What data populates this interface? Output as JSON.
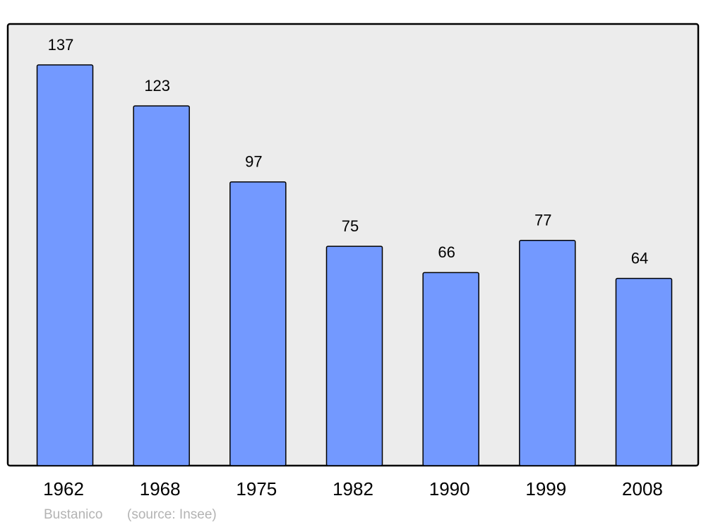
{
  "chart_data": {
    "type": "bar",
    "categories": [
      "1962",
      "1968",
      "1975",
      "1982",
      "1990",
      "1999",
      "2008"
    ],
    "values": [
      137,
      123,
      97,
      75,
      66,
      77,
      64
    ],
    "color": "#7399ff",
    "ylim": [
      0,
      151
    ],
    "caption": "Bustanico",
    "source": "(source: Insee)"
  }
}
